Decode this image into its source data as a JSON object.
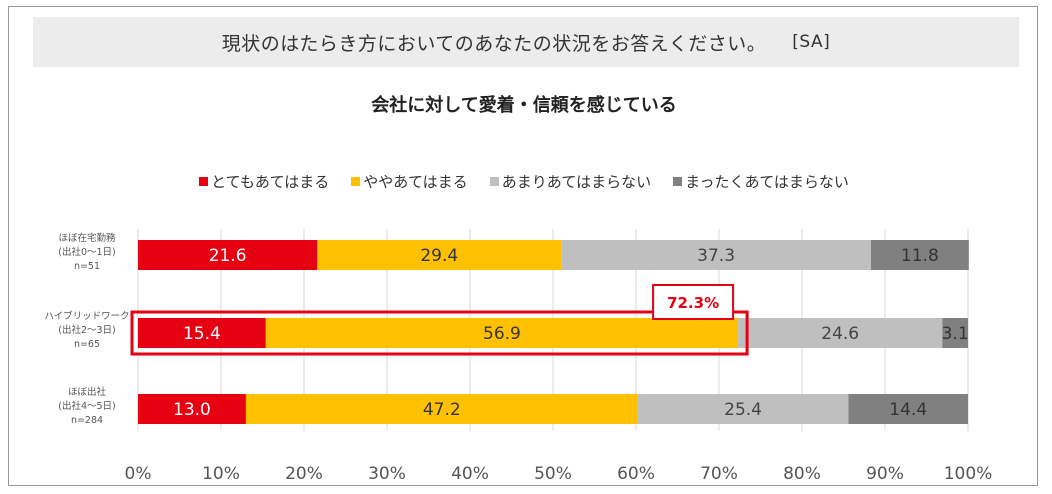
{
  "question": {
    "text": "現状のはたらき方においてのあなたの状況をお答えください。",
    "type_tag": "[SA]"
  },
  "chart_data": {
    "type": "bar",
    "orientation": "horizontal-stacked-100",
    "title": "会社に対して愛着・信頼を感じている",
    "legend_position": "top",
    "categories": [
      {
        "lines": [
          "ほぼ在宅勤務",
          "(出社0～1日)",
          "n=51"
        ]
      },
      {
        "lines": [
          "ハイブリッドワーク",
          "(出社2～3日)",
          "n=65"
        ]
      },
      {
        "lines": [
          "ほぼ出社",
          "(出社4～5日)",
          "n=284"
        ]
      }
    ],
    "series": [
      {
        "name": "とてもあてはまる",
        "color": "#e60012",
        "values": [
          21.6,
          15.4,
          13.0
        ]
      },
      {
        "name": "ややあてはまる",
        "color": "#ffc000",
        "values": [
          29.4,
          56.9,
          47.2
        ]
      },
      {
        "name": "あまりあてはまらない",
        "color": "#bfbfbf",
        "values": [
          37.3,
          24.6,
          25.4
        ]
      },
      {
        "name": "まったくあてはまらない",
        "color": "#808080",
        "values": [
          11.8,
          3.1,
          14.4
        ]
      }
    ],
    "label_colors": [
      "#ffffff",
      "#333333",
      "#444444",
      "#333333"
    ],
    "xlim": [
      0,
      100
    ],
    "xticks": [
      "0%",
      "10%",
      "20%",
      "30%",
      "40%",
      "50%",
      "60%",
      "70%",
      "80%",
      "90%",
      "100%"
    ],
    "grid": true,
    "annotation": {
      "text": "72.3%",
      "category_index": 1,
      "color": "#e60012"
    }
  }
}
